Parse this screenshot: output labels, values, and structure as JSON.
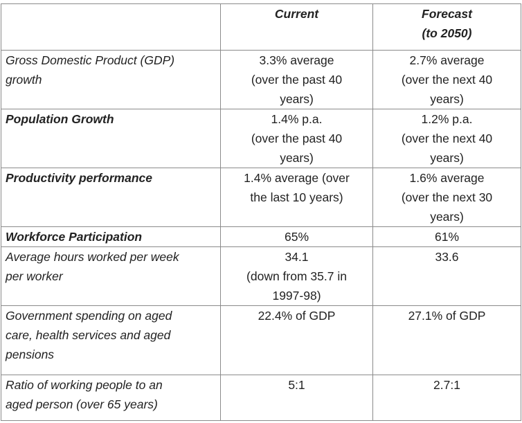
{
  "headers": {
    "blank": "",
    "current": "Current",
    "forecast": "Forecast\n(to 2050)"
  },
  "rows": [
    {
      "label": "Gross Domestic Product  (GDP)\ngrowth",
      "bold": false,
      "current": "3.3% average\n(over the past 40\nyears)",
      "forecast": "2.7% average\n(over the next 40\nyears)"
    },
    {
      "label": "Population Growth",
      "bold": true,
      "current": "1.4% p.a.\n(over the past 40\nyears)",
      "forecast": "1.2% p.a.\n(over the next 40\nyears)"
    },
    {
      "label": "Productivity performance",
      "bold": true,
      "current": "1.4% average (over\nthe last 10 years)",
      "forecast": "1.6% average\n(over the next 30\nyears)"
    },
    {
      "label": "Workforce Participation",
      "bold": true,
      "current": "65%",
      "forecast": "61%"
    },
    {
      "label": "Average hours worked per week\nper worker",
      "bold": false,
      "current": "34.1\n(down from 35.7 in\n1997-98)",
      "forecast": "33.6"
    },
    {
      "label": "Government spending on aged\ncare, health services and aged\npensions",
      "bold": false,
      "current": "22.4% of GDP",
      "forecast": "27.1% of GDP"
    },
    {
      "label": "Ratio of working people to an\naged person (over 65 years)",
      "bold": false,
      "current": "5:1",
      "forecast": "2.7:1"
    }
  ]
}
